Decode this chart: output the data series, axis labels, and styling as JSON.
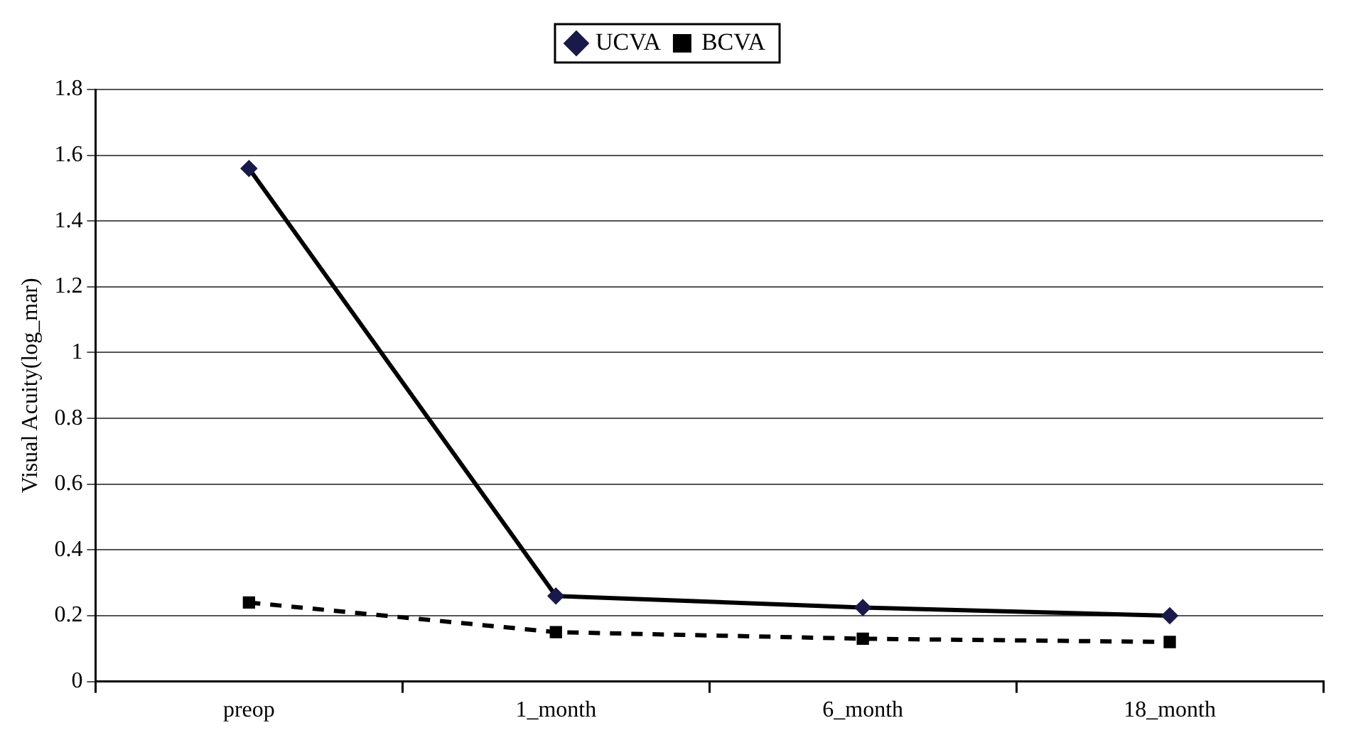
{
  "chart_data": {
    "type": "line",
    "ylabel": "Visual Acuity(log_mar)",
    "categories": [
      "preop",
      "1_month",
      "6_month",
      "18_month"
    ],
    "series": [
      {
        "name": "UCVA",
        "color": "#000000",
        "values": [
          1.56,
          0.26,
          0.225,
          0.2
        ],
        "marker": "diamond",
        "line_style": "solid"
      },
      {
        "name": "BCVA",
        "color": "#000000",
        "values": [
          0.24,
          0.15,
          0.13,
          0.12
        ],
        "marker": "square",
        "line_style": "dashed"
      }
    ],
    "ylim": [
      0,
      1.8
    ],
    "yticks": [
      0,
      0.2,
      0.4,
      0.6,
      0.8,
      1,
      1.2,
      1.4,
      1.6,
      1.8
    ],
    "grid": "y",
    "legend": "top"
  }
}
